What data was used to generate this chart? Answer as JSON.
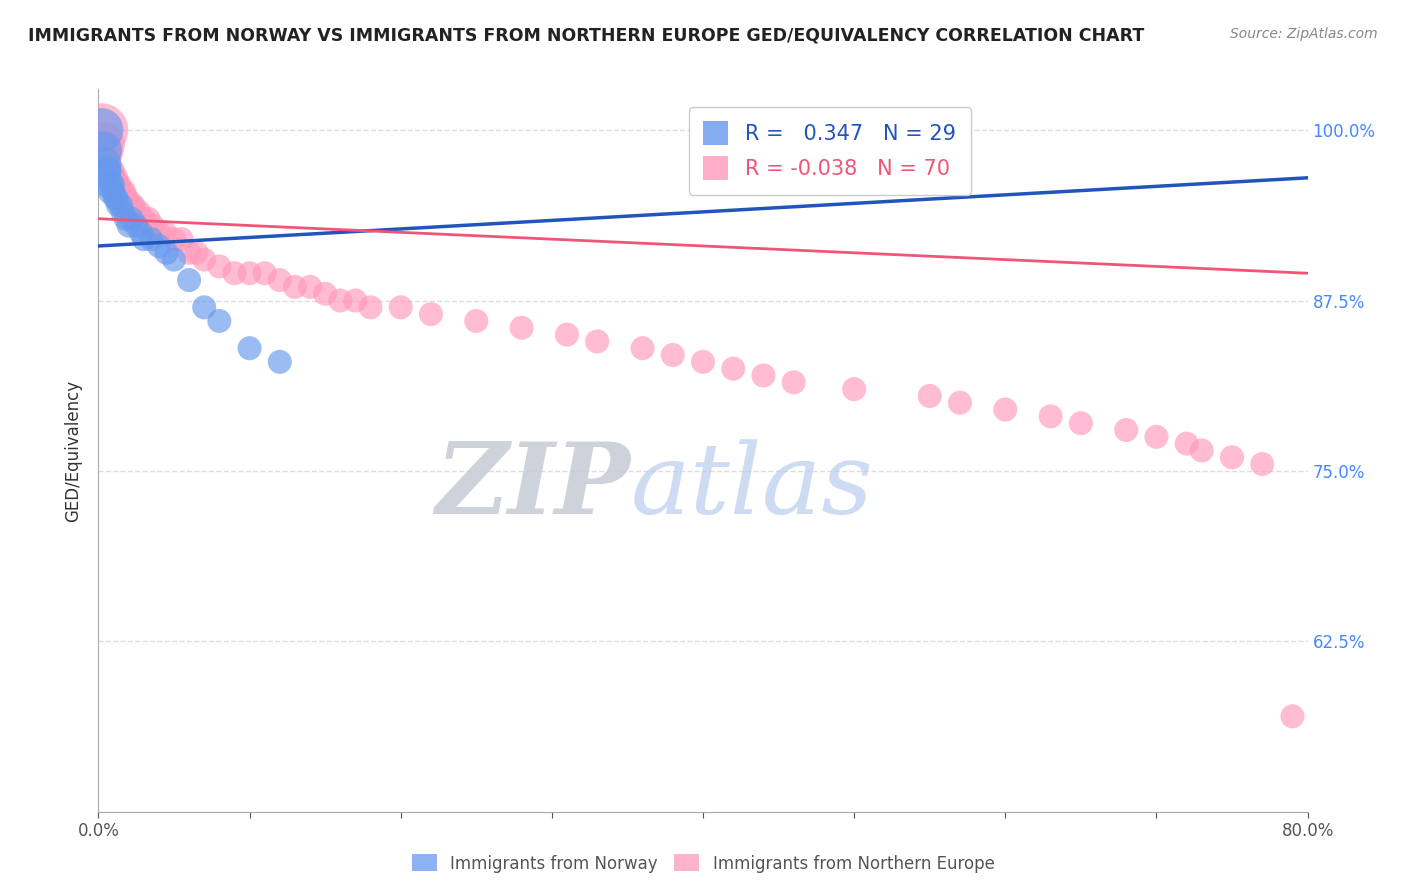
{
  "title": "IMMIGRANTS FROM NORWAY VS IMMIGRANTS FROM NORTHERN EUROPE GED/EQUIVALENCY CORRELATION CHART",
  "source": "Source: ZipAtlas.com",
  "ylabel": "GED/Equivalency",
  "xlim": [
    0.0,
    0.8
  ],
  "ylim": [
    0.5,
    1.03
  ],
  "yticklabels_right": [
    "62.5%",
    "75.0%",
    "87.5%",
    "100.0%"
  ],
  "ytick_positions": [
    0.625,
    0.75,
    0.875,
    1.0
  ],
  "norway_R": 0.347,
  "norway_N": 29,
  "northern_R": -0.038,
  "northern_N": 70,
  "norway_color": "#6699ee",
  "northern_color": "#ff99bb",
  "norway_line_color": "#2255bb",
  "northern_line_color": "#ee5577",
  "background_color": "#ffffff",
  "watermark_zip": "ZIP",
  "watermark_atlas": "atlas",
  "grid_color": "#dddddd",
  "norway_line_x": [
    0.0,
    0.8
  ],
  "norway_line_y": [
    0.915,
    0.965
  ],
  "northern_line_x": [
    0.0,
    0.8
  ],
  "northern_line_y": [
    0.935,
    0.895
  ],
  "norway_x": [
    0.002,
    0.003,
    0.004,
    0.005,
    0.006,
    0.007,
    0.008,
    0.009,
    0.01,
    0.011,
    0.012,
    0.013,
    0.015,
    0.016,
    0.018,
    0.02,
    0.022,
    0.025,
    0.028,
    0.03,
    0.035,
    0.04,
    0.045,
    0.05,
    0.06,
    0.07,
    0.08,
    0.1,
    0.12
  ],
  "norway_y": [
    1.0,
    0.985,
    0.975,
    0.97,
    0.97,
    0.96,
    0.955,
    0.96,
    0.955,
    0.95,
    0.95,
    0.945,
    0.945,
    0.94,
    0.935,
    0.93,
    0.935,
    0.93,
    0.925,
    0.92,
    0.92,
    0.915,
    0.91,
    0.905,
    0.89,
    0.87,
    0.86,
    0.84,
    0.83
  ],
  "norway_size": [
    200,
    150,
    120,
    100,
    80,
    80,
    70,
    70,
    60,
    60,
    60,
    60,
    60,
    60,
    60,
    60,
    60,
    60,
    60,
    60,
    60,
    60,
    60,
    60,
    60,
    60,
    60,
    60,
    60
  ],
  "northern_x": [
    0.002,
    0.003,
    0.004,
    0.005,
    0.006,
    0.007,
    0.008,
    0.009,
    0.01,
    0.011,
    0.012,
    0.013,
    0.014,
    0.015,
    0.016,
    0.017,
    0.018,
    0.019,
    0.02,
    0.021,
    0.022,
    0.023,
    0.025,
    0.027,
    0.03,
    0.033,
    0.036,
    0.04,
    0.044,
    0.05,
    0.055,
    0.06,
    0.065,
    0.07,
    0.08,
    0.09,
    0.1,
    0.11,
    0.12,
    0.13,
    0.14,
    0.15,
    0.16,
    0.17,
    0.18,
    0.2,
    0.22,
    0.25,
    0.28,
    0.31,
    0.33,
    0.36,
    0.38,
    0.4,
    0.42,
    0.44,
    0.46,
    0.5,
    0.55,
    0.57,
    0.6,
    0.63,
    0.65,
    0.68,
    0.7,
    0.72,
    0.73,
    0.75,
    0.77,
    0.79
  ],
  "northern_y": [
    1.0,
    0.99,
    0.985,
    0.98,
    0.975,
    0.97,
    0.97,
    0.97,
    0.965,
    0.965,
    0.96,
    0.96,
    0.96,
    0.955,
    0.955,
    0.955,
    0.95,
    0.95,
    0.945,
    0.945,
    0.945,
    0.945,
    0.94,
    0.94,
    0.935,
    0.935,
    0.93,
    0.925,
    0.925,
    0.92,
    0.92,
    0.91,
    0.91,
    0.905,
    0.9,
    0.895,
    0.895,
    0.895,
    0.89,
    0.885,
    0.885,
    0.88,
    0.875,
    0.875,
    0.87,
    0.87,
    0.865,
    0.86,
    0.855,
    0.85,
    0.845,
    0.84,
    0.835,
    0.83,
    0.825,
    0.82,
    0.815,
    0.81,
    0.805,
    0.8,
    0.795,
    0.79,
    0.785,
    0.78,
    0.775,
    0.77,
    0.765,
    0.76,
    0.755,
    0.57
  ],
  "northern_size": [
    300,
    200,
    150,
    100,
    80,
    80,
    70,
    70,
    70,
    70,
    60,
    60,
    60,
    60,
    60,
    60,
    60,
    60,
    60,
    60,
    60,
    60,
    60,
    60,
    60,
    60,
    60,
    60,
    60,
    60,
    60,
    60,
    60,
    60,
    60,
    60,
    60,
    60,
    60,
    60,
    60,
    60,
    60,
    60,
    60,
    60,
    60,
    60,
    60,
    60,
    60,
    60,
    60,
    60,
    60,
    60,
    60,
    60,
    60,
    60,
    60,
    60,
    60,
    60,
    60,
    60,
    60,
    60,
    60,
    60
  ]
}
